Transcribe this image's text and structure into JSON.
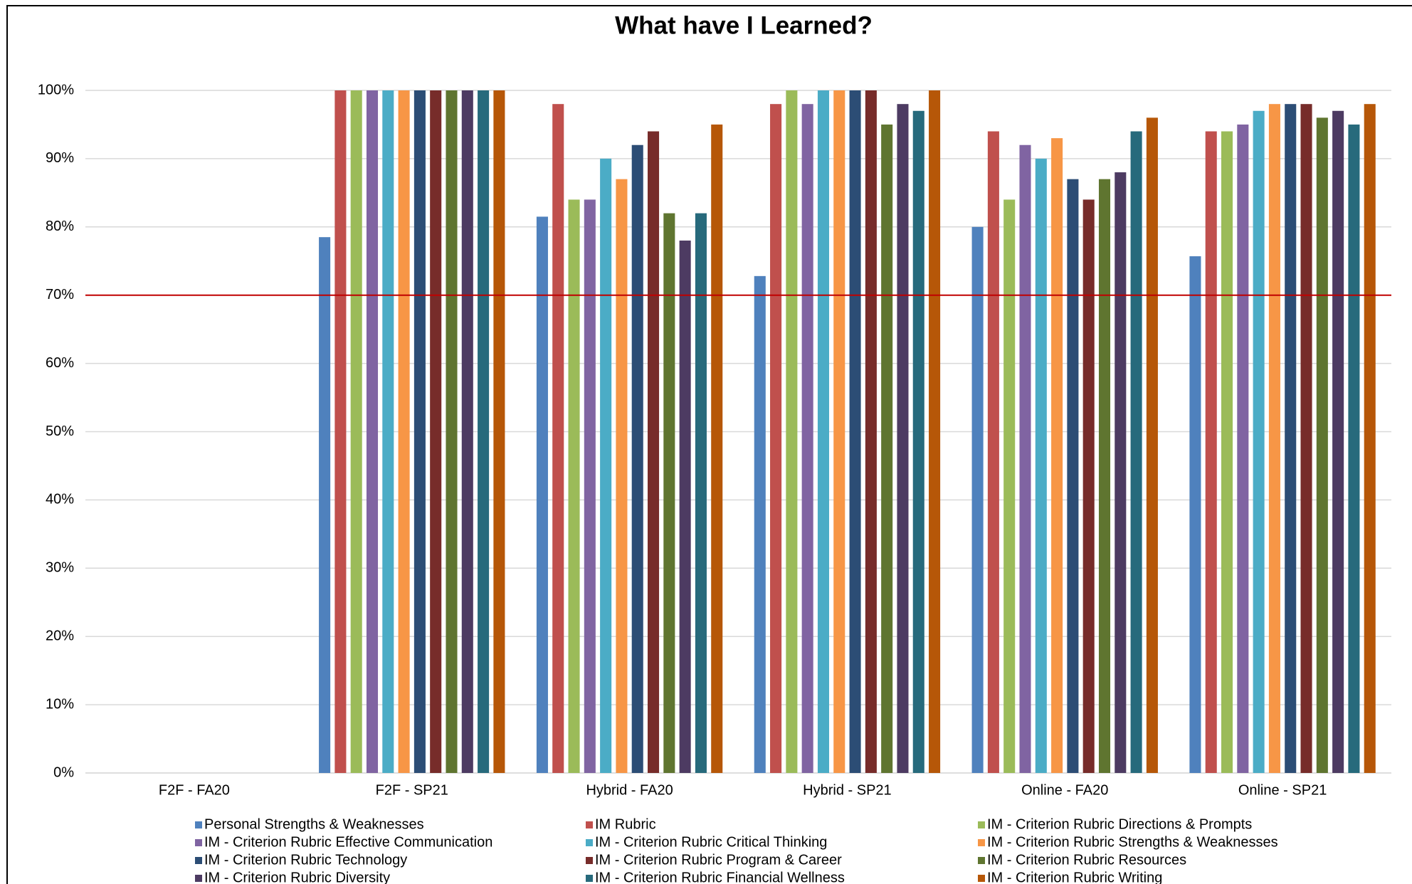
{
  "chart_data": {
    "type": "bar",
    "title": "What have I Learned?",
    "categories": [
      "F2F - FA20",
      "F2F - SP21",
      "Hybrid - FA20",
      "Hybrid - SP21",
      "Online - FA20",
      "Online - SP21"
    ],
    "series": [
      {
        "name": "Personal Strengths & Weaknesses",
        "color": "#4f81bd",
        "values": [
          null,
          78.5,
          81.5,
          72.8,
          80,
          75.7
        ]
      },
      {
        "name": "IM Rubric",
        "color": "#c0504d",
        "values": [
          null,
          100,
          98,
          98,
          94,
          94
        ]
      },
      {
        "name": "IM - Criterion Rubric Directions & Prompts",
        "color": "#9bbb59",
        "values": [
          null,
          100,
          84,
          100,
          84,
          94
        ]
      },
      {
        "name": "IM - Criterion Rubric Effective Communication",
        "color": "#8064a2",
        "values": [
          null,
          100,
          84,
          98,
          92,
          95
        ]
      },
      {
        "name": "IM - Criterion Rubric Critical Thinking",
        "color": "#4bacc6",
        "values": [
          null,
          100,
          90,
          100,
          90,
          97
        ]
      },
      {
        "name": "IM - Criterion Rubric Strengths & Weaknesses",
        "color": "#f79646",
        "values": [
          null,
          100,
          87,
          100,
          93,
          98
        ]
      },
      {
        "name": "IM - Criterion Rubric Technology",
        "color": "#2c4d75",
        "values": [
          null,
          100,
          92,
          100,
          87,
          98
        ]
      },
      {
        "name": "IM - Criterion Rubric Program & Career",
        "color": "#772c2a",
        "values": [
          null,
          100,
          94,
          100,
          84,
          98
        ]
      },
      {
        "name": "IM - Criterion Rubric Resources",
        "color": "#5f7530",
        "values": [
          null,
          100,
          82,
          95,
          87,
          96
        ]
      },
      {
        "name": "IM - Criterion Rubric Diversity",
        "color": "#4d3b62",
        "values": [
          null,
          100,
          78,
          98,
          88,
          97
        ]
      },
      {
        "name": "IM - Criterion Rubric Financial Wellness",
        "color": "#276a7c",
        "values": [
          null,
          100,
          82,
          97,
          94,
          95
        ]
      },
      {
        "name": "IM - Criterion Rubric Writing",
        "color": "#b65708",
        "values": [
          null,
          100,
          95,
          100,
          96,
          98
        ]
      }
    ],
    "ylim": [
      0,
      100
    ],
    "yticks": [
      {
        "value": 0,
        "label": "0%"
      },
      {
        "value": 10,
        "label": "10%"
      },
      {
        "value": 20,
        "label": "20%"
      },
      {
        "value": 30,
        "label": "30%"
      },
      {
        "value": 40,
        "label": "40%"
      },
      {
        "value": 50,
        "label": "50%"
      },
      {
        "value": 60,
        "label": "60%"
      },
      {
        "value": 70,
        "label": "70%"
      },
      {
        "value": 80,
        "label": "80%"
      },
      {
        "value": 90,
        "label": "90%"
      },
      {
        "value": 100,
        "label": "100%"
      }
    ],
    "grid": true,
    "reference_line": {
      "value": 70,
      "color": "#c00000"
    },
    "legend": "bottom"
  }
}
